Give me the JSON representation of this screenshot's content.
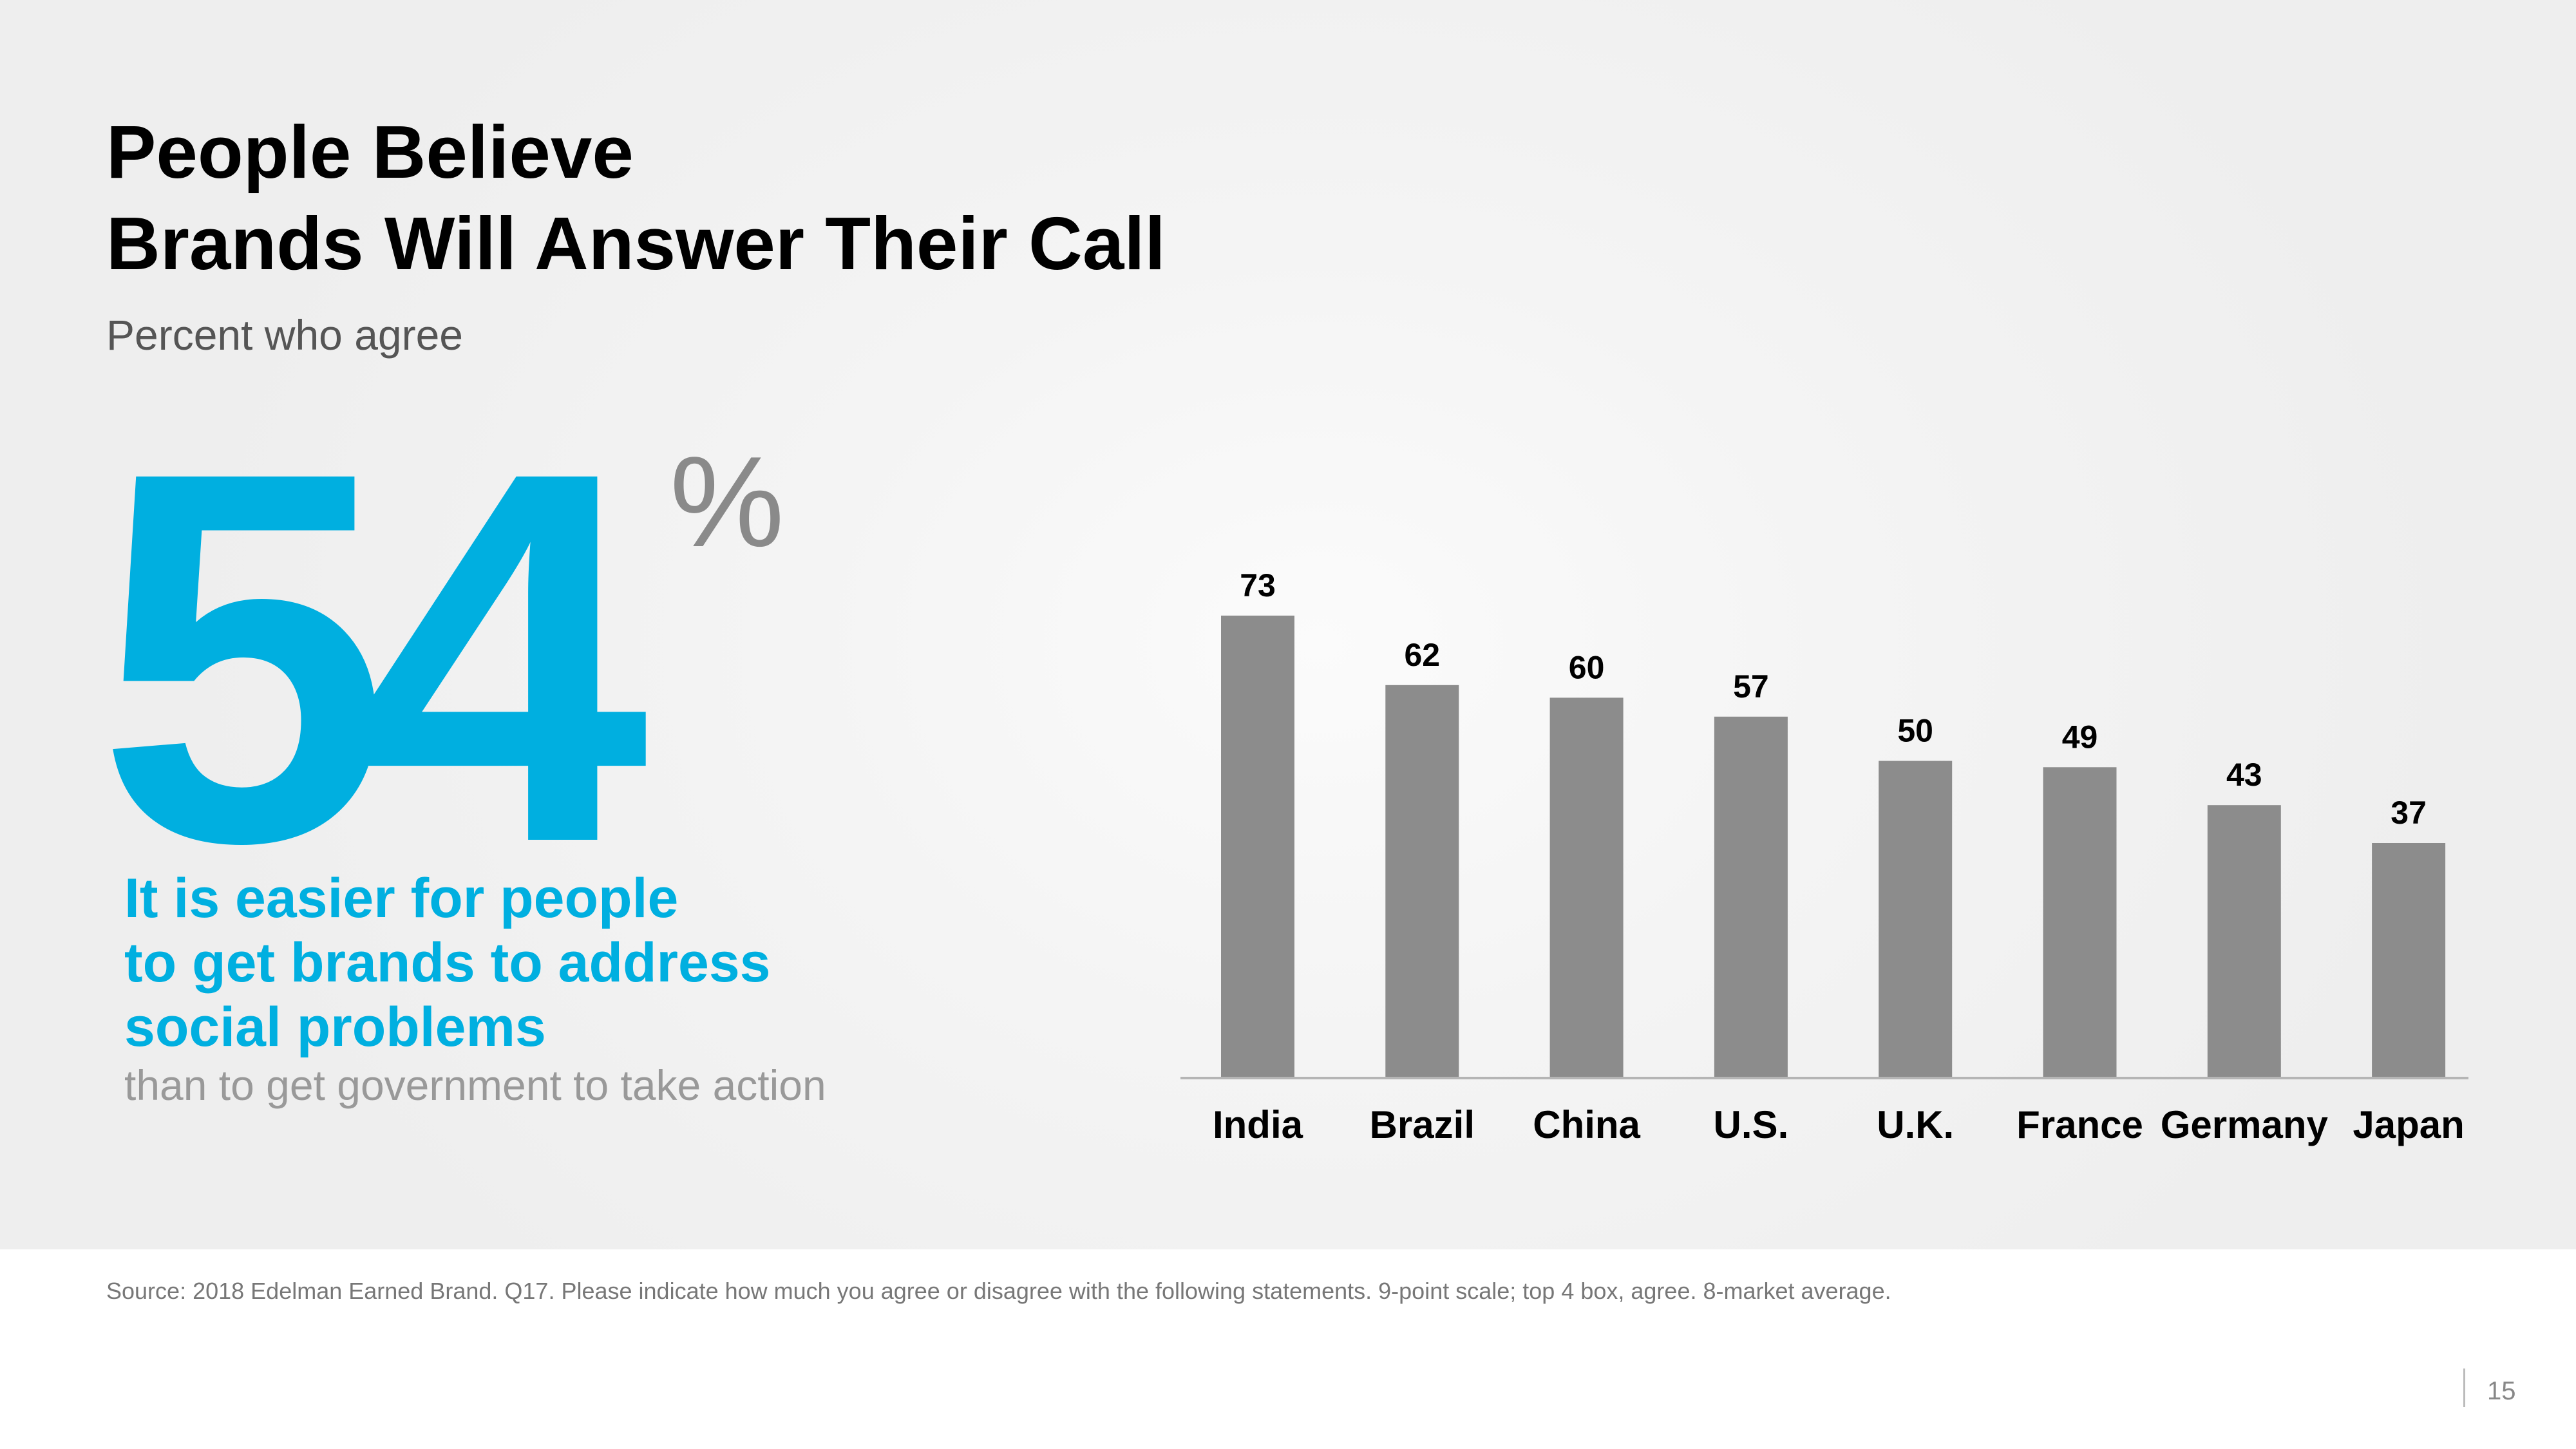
{
  "slide": {
    "title_line1": "People Believe",
    "title_line2": "Brands Will Answer Their Call",
    "subtitle": "Percent who agree"
  },
  "highlight": {
    "value": "54",
    "unit": "%",
    "callout_line1": "It is easier for people",
    "callout_line2": "to get brands to address",
    "callout_line3": "social problems",
    "callout_sub": "than to get government  to take action",
    "color": "#00afe0"
  },
  "chart_data": {
    "type": "bar",
    "categories": [
      "India",
      "Brazil",
      "China",
      "U.S.",
      "U.K.",
      "France",
      "Germany",
      "Japan"
    ],
    "values": [
      73,
      62,
      60,
      57,
      50,
      49,
      43,
      37
    ],
    "title": "",
    "xlabel": "",
    "ylabel": "",
    "ylim": [
      0,
      80
    ],
    "bar_color": "#8c8c8c",
    "grid": false,
    "legend": "none",
    "data_labels": true
  },
  "footer": {
    "source": "Source: 2018 Edelman Earned Brand. Q17. Please indicate how much you agree or disagree with the following statements. 9-point scale; top 4 box, agree. 8-market average.",
    "page_number": "15"
  }
}
